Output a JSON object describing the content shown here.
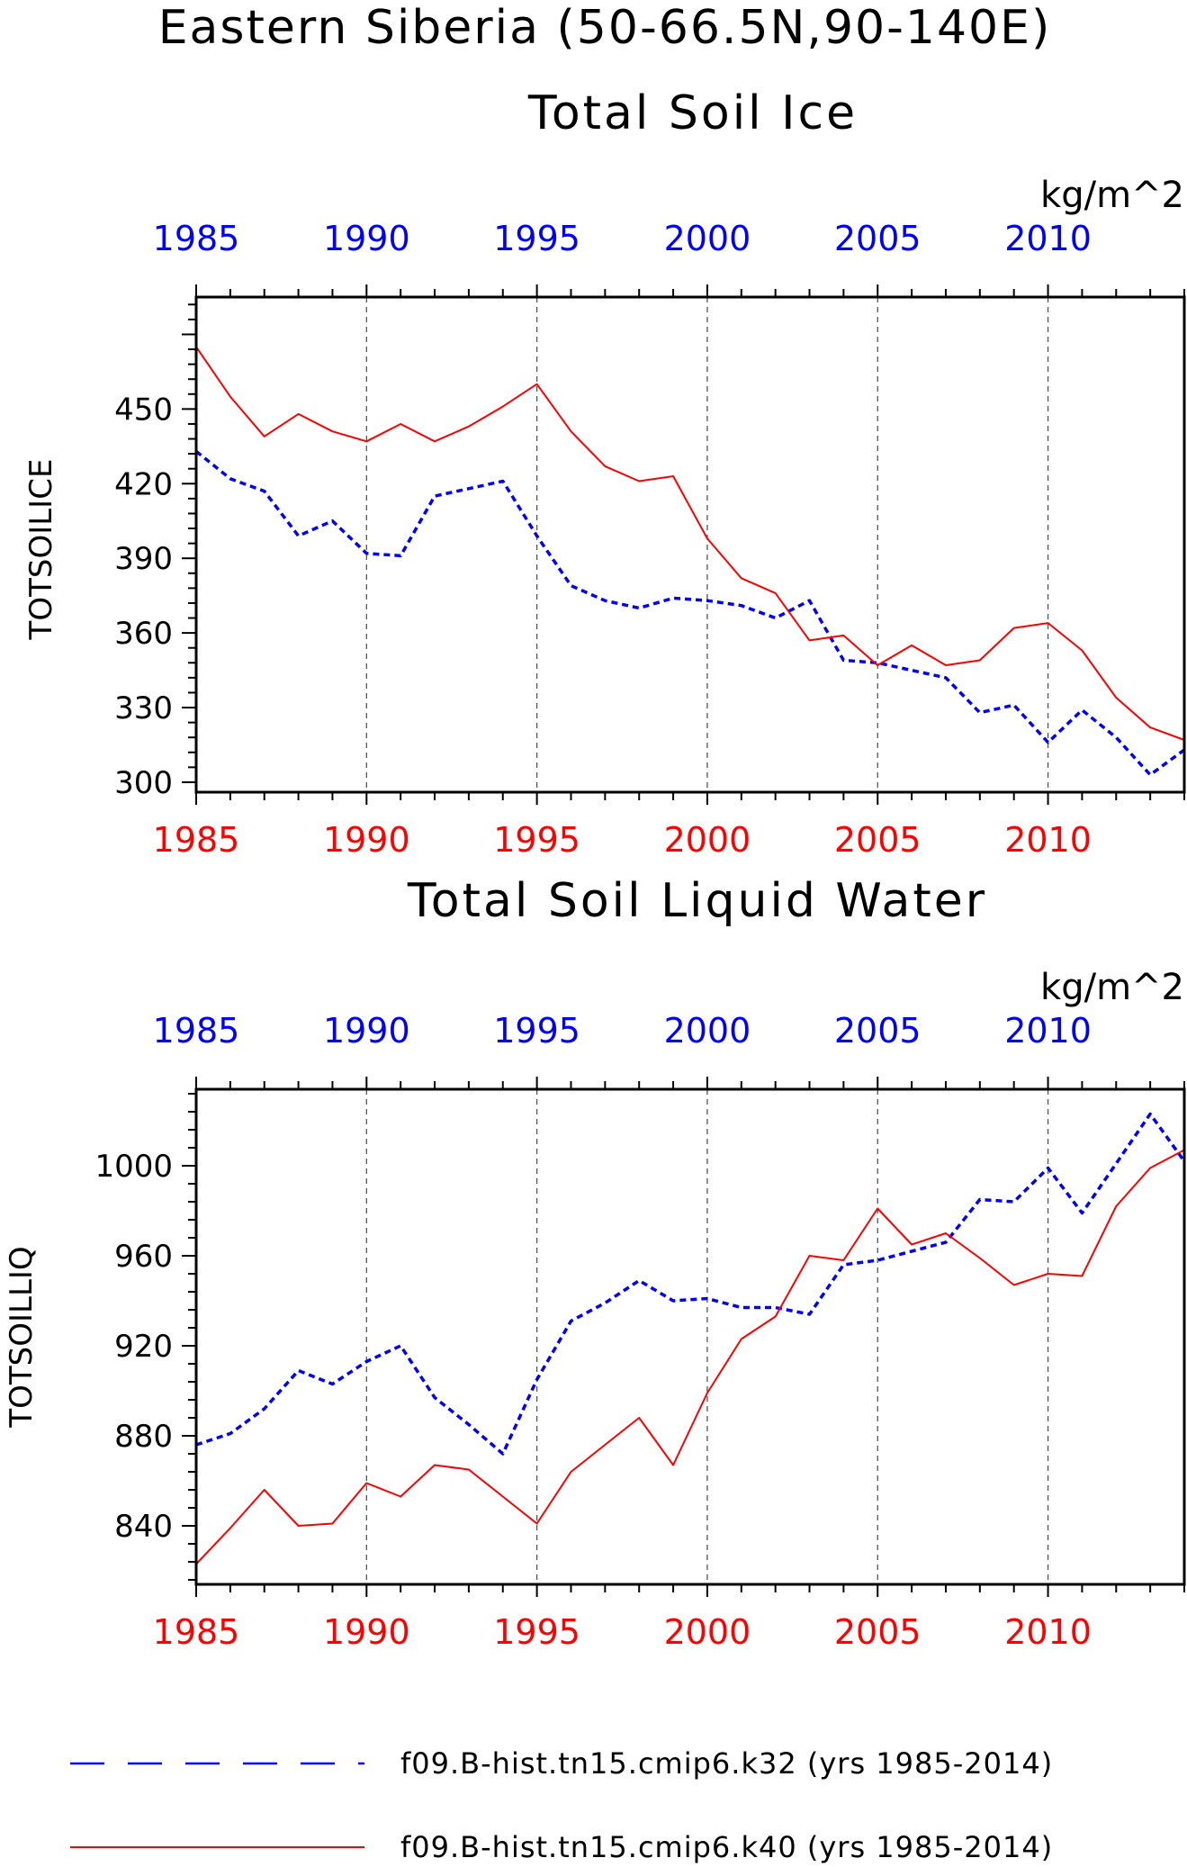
{
  "title": "Eastern Siberia (50-66.5N,90-140E)",
  "legend": [
    {
      "label": "f09.B-hist.tn15.cmip6.k32 (yrs 1985-2014)",
      "color": "#0000ff",
      "style": "dashed"
    },
    {
      "label": "f09.B-hist.tn15.cmip6.k40 (yrs 1985-2014)",
      "color": "#ff0000",
      "style": "solid"
    }
  ],
  "chart_data": [
    {
      "type": "line",
      "title": "Total Soil Ice",
      "units": "kg/m^2",
      "ylabel": "TOTSOILICE",
      "xlim": [
        1985,
        2014
      ],
      "ylim": [
        296,
        495
      ],
      "yticks": [
        300,
        330,
        360,
        390,
        420,
        450
      ],
      "xticks": [
        1985,
        1990,
        1995,
        2000,
        2005,
        2010
      ],
      "grid": "dashed vertical lines at labeled x ticks",
      "x": [
        1985,
        1986,
        1987,
        1988,
        1989,
        1990,
        1991,
        1992,
        1993,
        1994,
        1995,
        1996,
        1997,
        1998,
        1999,
        2000,
        2001,
        2002,
        2003,
        2004,
        2005,
        2006,
        2007,
        2008,
        2009,
        2010,
        2011,
        2012,
        2013,
        2014
      ],
      "series": [
        {
          "name": "f09.B-hist.tn15.cmip6.k32 (yrs 1985-2014)",
          "color": "#0000ff",
          "style": "dashed",
          "values": [
            433,
            422,
            417,
            399,
            405,
            392,
            391,
            415,
            418,
            421,
            399,
            379,
            373,
            370,
            374,
            373,
            371,
            366,
            373,
            349,
            348,
            345,
            342,
            328,
            331,
            316,
            329,
            318,
            303,
            313
          ]
        },
        {
          "name": "f09.B-hist.tn15.cmip6.k40 (yrs 1985-2014)",
          "color": "#ff0000",
          "style": "solid",
          "values": [
            475,
            455,
            439,
            448,
            441,
            437,
            444,
            437,
            443,
            451,
            460,
            441,
            427,
            421,
            423,
            398,
            382,
            376,
            357,
            359,
            347,
            355,
            347,
            349,
            362,
            364,
            353,
            334,
            322,
            317
          ]
        }
      ]
    },
    {
      "type": "line",
      "title": "Total Soil Liquid Water",
      "units": "kg/m^2",
      "ylabel": "TOTSOILLIQ",
      "xlim": [
        1985,
        2014
      ],
      "ylim": [
        814,
        1034
      ],
      "yticks": [
        840,
        880,
        920,
        960,
        1000
      ],
      "xticks": [
        1985,
        1990,
        1995,
        2000,
        2005,
        2010
      ],
      "grid": "dashed vertical lines at labeled x ticks",
      "x": [
        1985,
        1986,
        1987,
        1988,
        1989,
        1990,
        1991,
        1992,
        1993,
        1994,
        1995,
        1996,
        1997,
        1998,
        1999,
        2000,
        2001,
        2002,
        2003,
        2004,
        2005,
        2006,
        2007,
        2008,
        2009,
        2010,
        2011,
        2012,
        2013,
        2014
      ],
      "series": [
        {
          "name": "f09.B-hist.tn15.cmip6.k32 (yrs 1985-2014)",
          "color": "#0000ff",
          "style": "dashed",
          "values": [
            876,
            881,
            892,
            909,
            903,
            913,
            920,
            897,
            885,
            872,
            905,
            931,
            939,
            949,
            940,
            941,
            937,
            937,
            934,
            956,
            958,
            962,
            966,
            985,
            984,
            999,
            979,
            1001,
            1023,
            1002
          ]
        },
        {
          "name": "f09.B-hist.tn15.cmip6.k40 (yrs 1985-2014)",
          "color": "#ff0000",
          "style": "solid",
          "values": [
            823,
            839,
            856,
            840,
            841,
            859,
            853,
            867,
            865,
            853,
            841,
            864,
            876,
            888,
            867,
            899,
            923,
            933,
            960,
            958,
            981,
            965,
            970,
            959,
            947,
            952,
            951,
            982,
            999,
            1007
          ]
        }
      ]
    }
  ]
}
